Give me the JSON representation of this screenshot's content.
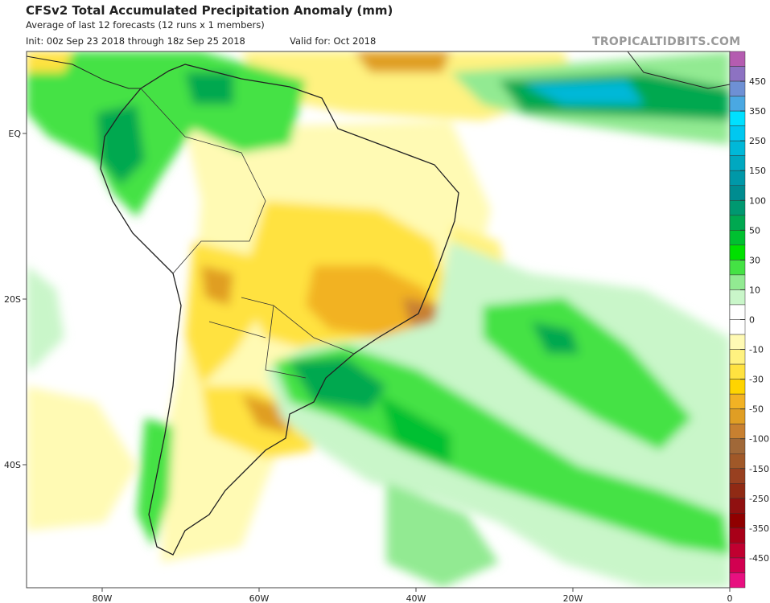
{
  "header": {
    "title": "CFSv2 Total Accumulated Precipitation Anomaly (mm)",
    "subtitle": "Average of last 12 forecasts (12 runs x 1 members)",
    "init": "Init: 00z Sep 23 2018 through 18z Sep 25 2018",
    "valid": "Valid for: Oct 2018",
    "watermark": "TROPICALTIDBITS.COM"
  },
  "chart_data": {
    "type": "heatmap",
    "title": "CFSv2 Total Accumulated Precipitation Anomaly (mm)",
    "region": "South America and South Atlantic",
    "x_ticks": [
      "80W",
      "60W",
      "40W",
      "20W",
      "0"
    ],
    "y_ticks": [
      "EQ",
      "20S",
      "40S"
    ],
    "lon_range": [
      -90,
      0
    ],
    "lat_range": [
      10,
      -55
    ],
    "colorbar": {
      "labels": [
        "450",
        "350",
        "250",
        "150",
        "100",
        "50",
        "30",
        "10",
        "0",
        "-10",
        "-30",
        "-50",
        "-100",
        "-150",
        "-250",
        "-350",
        "-450"
      ],
      "colors": [
        "#b45cb0",
        "#8d72c2",
        "#6e90d4",
        "#4aa8e2",
        "#00e0ff",
        "#00c8f0",
        "#00b8d8",
        "#00a8c0",
        "#0098a8",
        "#008c90",
        "#009870",
        "#00a850",
        "#00c030",
        "#00e000",
        "#44e244",
        "#92ea92",
        "#c9f6c9",
        "#ffffff",
        "#ffffff",
        "#fffab4",
        "#fff280",
        "#ffe240",
        "#ffd400",
        "#f2b224",
        "#e09e24",
        "#c88030",
        "#a06838",
        "#a05828",
        "#984020",
        "#902a14",
        "#901010",
        "#900000",
        "#a80018",
        "#c00030",
        "#d20050",
        "#e81080"
      ]
    },
    "pattern": {
      "positive_anomaly": [
        "Colombia/Ecuador Andes",
        "Equatorial Atlantic ITCZ",
        "Southern Brazil/Uruguay into South Atlantic diagonal band"
      ],
      "negative_anomaly": [
        "Central and eastern Brazil",
        "Northern Argentina",
        "Northern Brazil coast/Atlantic north of equator"
      ]
    }
  }
}
